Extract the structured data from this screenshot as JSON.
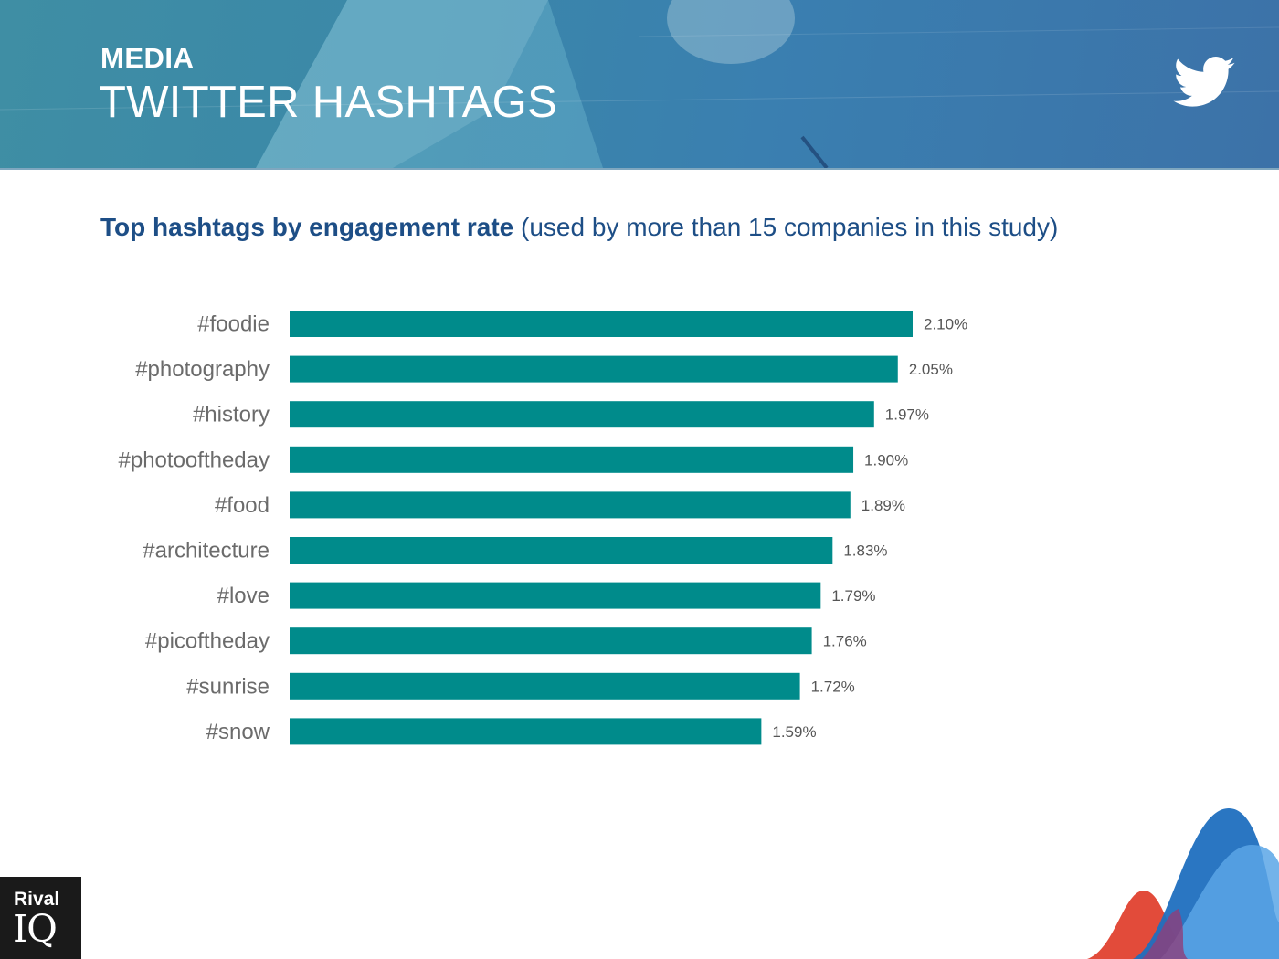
{
  "header": {
    "kicker": "MEDIA",
    "title": "TWITTER HASHTAGS",
    "icon": "twitter-bird-icon"
  },
  "subtitle": {
    "strong": "Top hashtags by engagement rate",
    "rest": " (used by more than 15 companies in this study)"
  },
  "brand": {
    "line1": "Rival",
    "line2": "IQ"
  },
  "colors": {
    "bar": "#008b8b",
    "label": "#6b6b6b",
    "value": "#555555",
    "title": "#1d4e86"
  },
  "chart_data": {
    "type": "bar",
    "orientation": "horizontal",
    "categories": [
      "#foodie",
      "#photography",
      "#history",
      "#photooftheday",
      "#food",
      "#architecture",
      "#love",
      "#picoftheday",
      "#sunrise",
      "#snow"
    ],
    "values": [
      2.1,
      2.05,
      1.97,
      1.9,
      1.89,
      1.83,
      1.79,
      1.76,
      1.72,
      1.59
    ],
    "value_labels": [
      "2.10%",
      "2.05%",
      "1.97%",
      "1.90%",
      "1.89%",
      "1.83%",
      "1.79%",
      "1.76%",
      "1.72%",
      "1.59%"
    ],
    "unit": "%",
    "xlim": [
      0,
      2.1
    ],
    "grid": false,
    "legend": "none"
  }
}
